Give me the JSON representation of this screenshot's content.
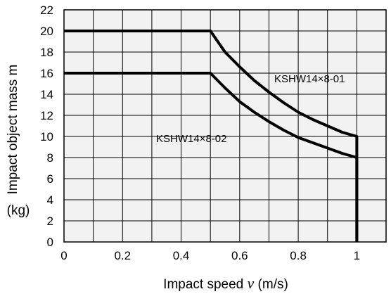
{
  "chart_data": {
    "type": "line",
    "title": "",
    "xlabel": {
      "prefix": "Impact speed ",
      "variable": "v",
      "suffix": " (m/s)"
    },
    "ylabel": {
      "line1": "Impact object mass m",
      "line2": "(kg)"
    },
    "xlim": [
      0,
      1.1
    ],
    "ylim": [
      0,
      22
    ],
    "x_ticks": [
      0,
      0.2,
      0.4,
      0.6,
      0.8,
      1
    ],
    "x_tick_labels": [
      "0",
      "0.2",
      "0.4",
      "0.6",
      "0.8",
      "1"
    ],
    "y_ticks": [
      0,
      2,
      4,
      6,
      8,
      10,
      12,
      14,
      16,
      18,
      20,
      22
    ],
    "y_tick_labels": [
      "0",
      "2",
      "4",
      "6",
      "8",
      "10",
      "12",
      "14",
      "16",
      "18",
      "20",
      "22"
    ],
    "grid_x_step": 0.1,
    "grid_y_step": 2,
    "grid": true,
    "background": "#f2f2f2",
    "grid_color": "#000000",
    "line_color": "#000000",
    "series": [
      {
        "name": "KSHW14×8-01",
        "x": [
          0,
          0.5,
          0.55,
          0.6,
          0.65,
          0.7,
          0.75,
          0.8,
          0.85,
          0.9,
          0.95,
          1.0,
          1.0
        ],
        "y": [
          20,
          20,
          18,
          16.6,
          15.3,
          14.2,
          13.2,
          12.3,
          11.6,
          11.0,
          10.4,
          10.0,
          0
        ]
      },
      {
        "name": "KSHW14×8-02",
        "x": [
          0,
          0.5,
          0.55,
          0.6,
          0.65,
          0.7,
          0.75,
          0.8,
          0.85,
          0.9,
          0.95,
          1.0,
          1.0
        ],
        "y": [
          16,
          16,
          14.6,
          13.3,
          12.3,
          11.4,
          10.6,
          9.9,
          9.4,
          8.9,
          8.4,
          8.0,
          0
        ]
      }
    ]
  }
}
